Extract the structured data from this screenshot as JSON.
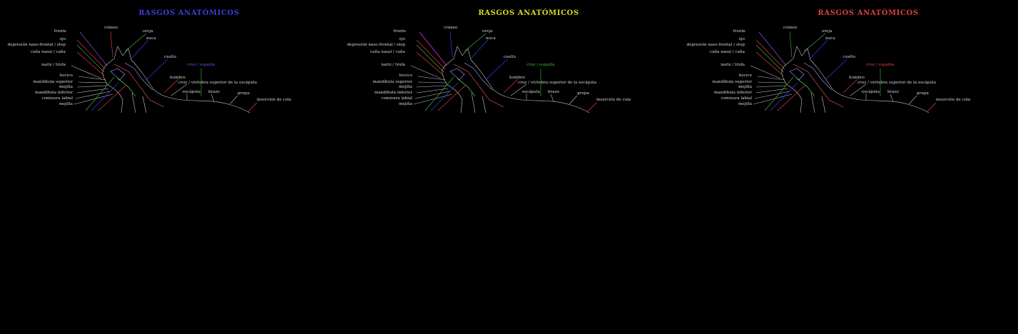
{
  "panels": [
    {
      "title": "RASGOS ANATÓMICOS",
      "title_color": "#3c3cd8",
      "labels": {
        "frente": "frente",
        "ojo": "ojo",
        "stop": "depresión naso-frontal / stop",
        "cana_nasal": "caña nasal / caña",
        "nariz": "nariz / trufa",
        "hocico": "hocico",
        "mand_sup": "mandíbula superior",
        "mejilla_top": "mejilla",
        "mand_inf": "mandíbula inferior",
        "comisura": "comisura labial",
        "mejilla_bottom": "mejilla",
        "craneo": "cráneo",
        "oreja": "oreja",
        "nuca": "nuca",
        "cuello": "cuello",
        "cruz": "cruz / espalda",
        "hombro": "hombro",
        "escapula": "escápula",
        "vertebra": "cruz / vértebra superior de la escápula",
        "brazo": "brazo",
        "lomo": "lomo",
        "grupa": "grupa",
        "cola": "inserción de cola"
      }
    },
    {
      "title": "RASGOS ANATÓMICOS",
      "title_color": "#d8d820",
      "labels": {
        "frente": "frente",
        "ojo": "ojo",
        "stop": "depresión naso-frontal / stop",
        "cana_nasal": "caña nasal / caña",
        "nariz": "nariz / trufa",
        "hocico": "hocico",
        "mand_sup": "mandíbula superior",
        "mejilla_top": "mejilla",
        "mand_inf": "mandíbula inferior",
        "comisura": "comisura labial",
        "mejilla_bottom": "mejilla",
        "craneo": "cráneo",
        "oreja": "oreja",
        "nuca": "nuca",
        "cuello": "cuello",
        "cruz": "cruz / espalda",
        "hombro": "hombro",
        "escapula": "escápula",
        "vertebra": "cruz / vértebra superior de la escápula",
        "brazo": "brazo",
        "lomo": "lomo",
        "grupa": "grupa",
        "cola": "inserción de cola"
      }
    },
    {
      "title": "RASGOS ANATÓMICOS",
      "title_color": "#d84040",
      "labels": {
        "frente": "frente",
        "ojo": "ojo",
        "stop": "depresión naso-frontal / stop",
        "cana_nasal": "caña nasal / caña",
        "nariz": "nariz / trufa",
        "hocico": "hocico",
        "mand_sup": "mandíbula superior",
        "mejilla_top": "mejilla",
        "mand_inf": "mandíbula inferior",
        "comisura": "comisura labial",
        "mejilla_bottom": "mejilla",
        "craneo": "cráneo",
        "oreja": "oreja",
        "nuca": "nuca",
        "cuello": "cuello",
        "cruz": "cruz / espalda",
        "hombro": "hombro",
        "escapula": "escápula",
        "vertebra": "cruz / vértebra superior de la escápula",
        "brazo": "brazo",
        "lomo": "lomo",
        "grupa": "grupa",
        "cola": "inserción de cola"
      }
    }
  ]
}
